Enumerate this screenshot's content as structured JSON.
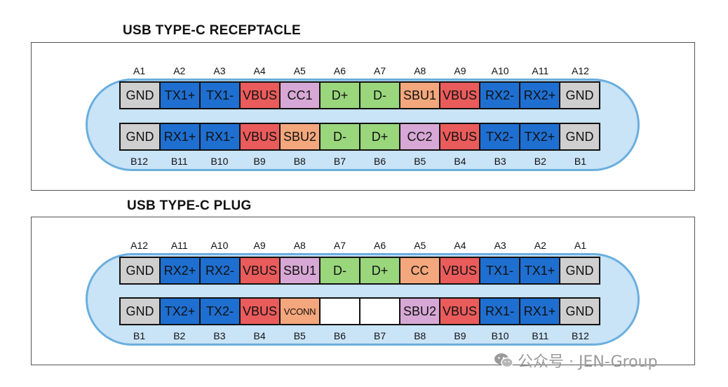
{
  "colors": {
    "gnd": "#cfcfcf",
    "tx_rx": "#1f6fd1",
    "vbus": "#ea5b5b",
    "cc": "#d7a8d5",
    "sbu": "#f4a77c",
    "d": "#9ad67c",
    "empty": "#ffffff",
    "shell_fill": "#c9e3f7",
    "shell_border": "#6aaede"
  },
  "receptacle": {
    "title": "USB TYPE-C RECEPTACLE",
    "top_labels": [
      "A1",
      "A2",
      "A3",
      "A4",
      "A5",
      "A6",
      "A7",
      "A8",
      "A9",
      "A10",
      "A11",
      "A12"
    ],
    "top_pins": [
      {
        "text": "GND",
        "kind": "gnd"
      },
      {
        "text": "TX1+",
        "kind": "tx_rx"
      },
      {
        "text": "TX1-",
        "kind": "tx_rx"
      },
      {
        "text": "VBUS",
        "kind": "vbus"
      },
      {
        "text": "CC1",
        "kind": "cc"
      },
      {
        "text": "D+",
        "kind": "d"
      },
      {
        "text": "D-",
        "kind": "d"
      },
      {
        "text": "SBU1",
        "kind": "sbu"
      },
      {
        "text": "VBUS",
        "kind": "vbus"
      },
      {
        "text": "RX2-",
        "kind": "tx_rx"
      },
      {
        "text": "RX2+",
        "kind": "tx_rx"
      },
      {
        "text": "GND",
        "kind": "gnd"
      }
    ],
    "bottom_pins": [
      {
        "text": "GND",
        "kind": "gnd"
      },
      {
        "text": "RX1+",
        "kind": "tx_rx"
      },
      {
        "text": "RX1-",
        "kind": "tx_rx"
      },
      {
        "text": "VBUS",
        "kind": "vbus"
      },
      {
        "text": "SBU2",
        "kind": "sbu"
      },
      {
        "text": "D-",
        "kind": "d"
      },
      {
        "text": "D+",
        "kind": "d"
      },
      {
        "text": "CC2",
        "kind": "cc"
      },
      {
        "text": "VBUS",
        "kind": "vbus"
      },
      {
        "text": "TX2-",
        "kind": "tx_rx"
      },
      {
        "text": "TX2+",
        "kind": "tx_rx"
      },
      {
        "text": "GND",
        "kind": "gnd"
      }
    ],
    "bottom_labels": [
      "B12",
      "B11",
      "B10",
      "B9",
      "B8",
      "B7",
      "B6",
      "B5",
      "B4",
      "B3",
      "B2",
      "B1"
    ]
  },
  "plug": {
    "title": "USB TYPE-C PLUG",
    "top_labels": [
      "A12",
      "A11",
      "A10",
      "A9",
      "A8",
      "A7",
      "A6",
      "A5",
      "A4",
      "A3",
      "A2",
      "A1"
    ],
    "top_pins": [
      {
        "text": "GND",
        "kind": "gnd"
      },
      {
        "text": "RX2+",
        "kind": "tx_rx"
      },
      {
        "text": "RX2-",
        "kind": "tx_rx"
      },
      {
        "text": "VBUS",
        "kind": "vbus"
      },
      {
        "text": "SBU1",
        "kind": "cc"
      },
      {
        "text": "D-",
        "kind": "d"
      },
      {
        "text": "D+",
        "kind": "d"
      },
      {
        "text": "CC",
        "kind": "sbu"
      },
      {
        "text": "VBUS",
        "kind": "vbus"
      },
      {
        "text": "TX1-",
        "kind": "tx_rx"
      },
      {
        "text": "TX1+",
        "kind": "tx_rx"
      },
      {
        "text": "GND",
        "kind": "gnd"
      }
    ],
    "bottom_pins": [
      {
        "text": "GND",
        "kind": "gnd"
      },
      {
        "text": "TX2+",
        "kind": "tx_rx"
      },
      {
        "text": "TX2-",
        "kind": "tx_rx"
      },
      {
        "text": "VBUS",
        "kind": "vbus"
      },
      {
        "text": "VCONN",
        "kind": "sbu"
      },
      {
        "text": "",
        "kind": "empty"
      },
      {
        "text": "",
        "kind": "empty"
      },
      {
        "text": "SBU2",
        "kind": "cc"
      },
      {
        "text": "VBUS",
        "kind": "vbus"
      },
      {
        "text": "RX1-",
        "kind": "tx_rx"
      },
      {
        "text": "RX1+",
        "kind": "tx_rx"
      },
      {
        "text": "GND",
        "kind": "gnd"
      }
    ],
    "bottom_labels": [
      "B1",
      "B2",
      "B3",
      "B4",
      "B5",
      "B6",
      "B7",
      "B8",
      "B9",
      "B10",
      "B11",
      "B12"
    ]
  },
  "watermark": {
    "text": "公众号 · JEN-Group",
    "icon": "wechat-icon"
  }
}
